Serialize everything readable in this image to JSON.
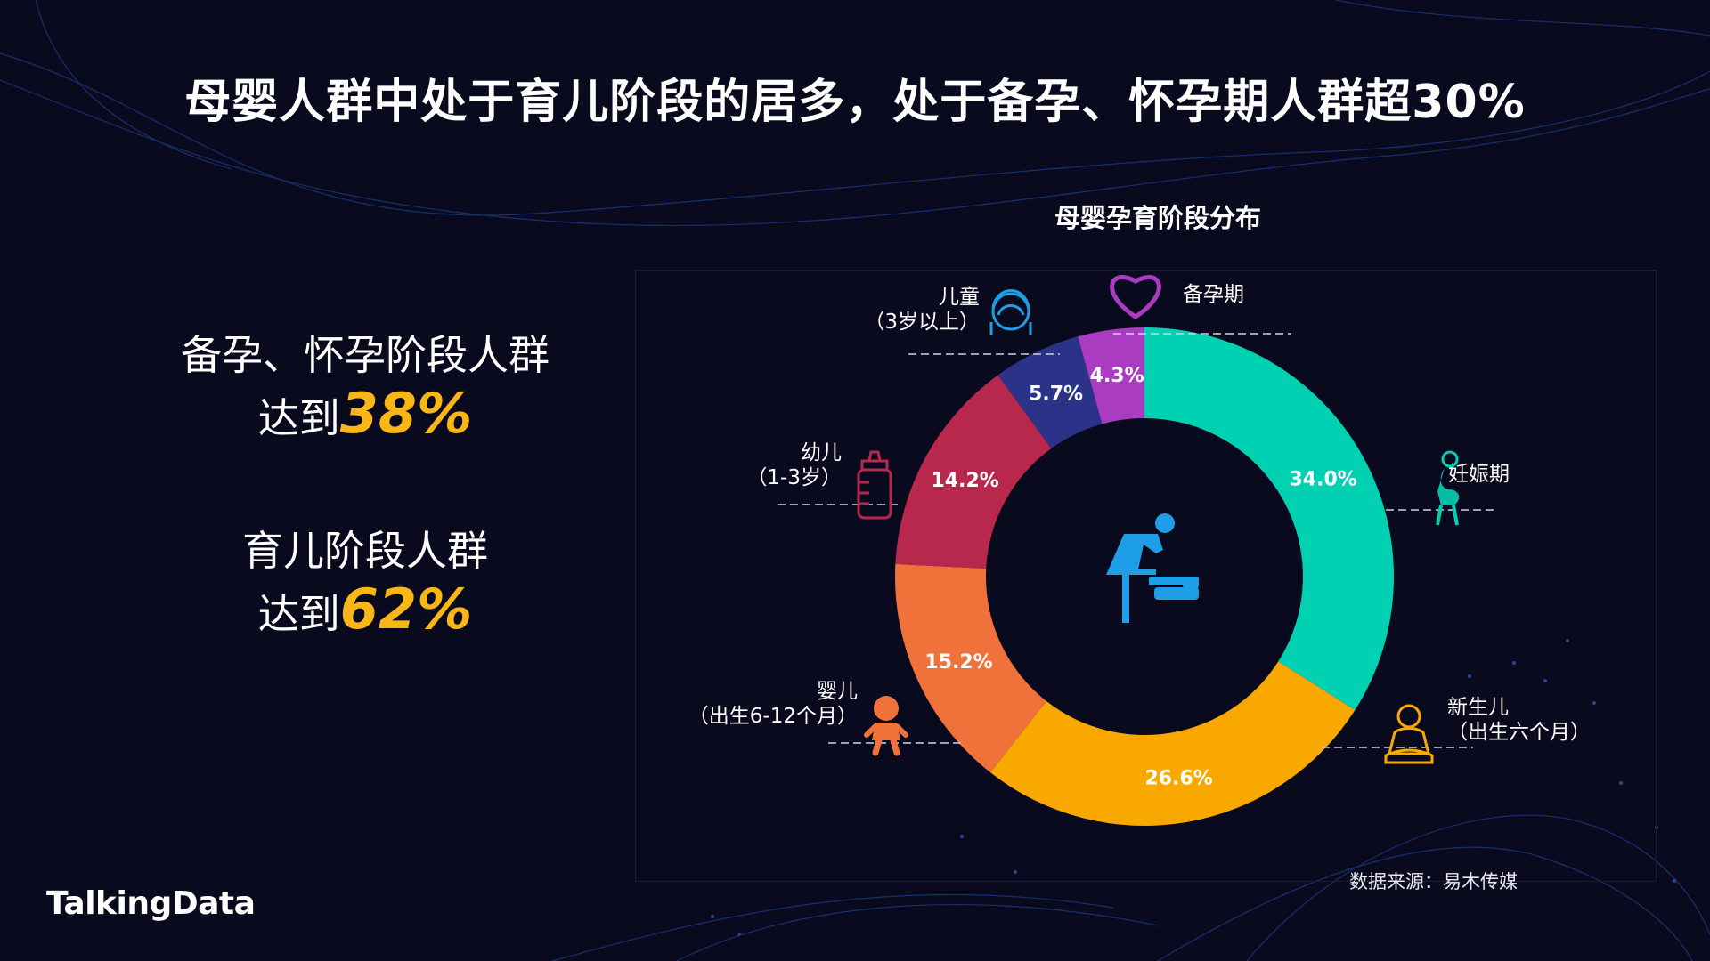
{
  "page": {
    "title": "母婴人群中处于育儿阶段的居多，处于备孕、怀孕期人群超30%",
    "left_block_1": {
      "line1": "备孕、怀孕阶段人群",
      "prefix": "达到",
      "value": "38%"
    },
    "left_block_2": {
      "line1": "育儿阶段人群",
      "prefix": "达到",
      "value": "62%"
    },
    "source": "数据来源：易木传媒",
    "brand": "TalkingData",
    "highlight_color": "#f8b617"
  },
  "chart_data": {
    "type": "pie",
    "variant": "donut",
    "title": "母婴孕育阶段分布",
    "center_icon": "baby-changing-icon",
    "slices": [
      {
        "name": "妊娠期",
        "label_lines": [
          "妊娠期"
        ],
        "value": 34.0,
        "value_label": "34.0%",
        "color": "#00d1b2",
        "icon": "pregnant-woman-icon"
      },
      {
        "name": "新生儿",
        "label_lines": [
          "新生儿",
          "（出生六个月）"
        ],
        "value": 26.6,
        "value_label": "26.6%",
        "color": "#f9a800",
        "icon": "newborn-icon"
      },
      {
        "name": "婴儿",
        "label_lines": [
          "婴儿",
          "（出生6-12个月）"
        ],
        "value": 15.2,
        "value_label": "15.2%",
        "color": "#f0713a",
        "icon": "baby-icon"
      },
      {
        "name": "幼儿",
        "label_lines": [
          "幼儿",
          "（1-3岁）"
        ],
        "value": 14.2,
        "value_label": "14.2%",
        "color": "#b8284d",
        "icon": "baby-bottle-icon"
      },
      {
        "name": "儿童",
        "label_lines": [
          "儿童",
          "（3岁以上）"
        ],
        "value": 5.7,
        "value_label": "5.7%",
        "color": "#2a3388",
        "icon": "child-icon"
      },
      {
        "name": "备孕期",
        "label_lines": [
          "备孕期"
        ],
        "value": 4.3,
        "value_label": "4.3%",
        "color": "#a93cc0",
        "icon": "heart-icon"
      }
    ]
  }
}
